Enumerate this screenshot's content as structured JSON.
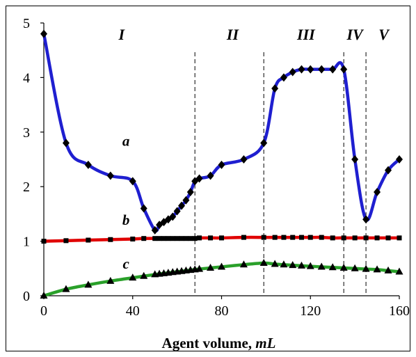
{
  "chart_data": {
    "type": "line",
    "xlabel": "Agent volume,",
    "xlabel_unit": "mL",
    "xlim": [
      0,
      160
    ],
    "ylim": [
      0,
      5
    ],
    "x_ticks": [
      0,
      40,
      80,
      120,
      160
    ],
    "y_ticks": [
      0,
      1,
      2,
      3,
      4,
      5
    ],
    "grid": false,
    "regions": [
      {
        "label": "I",
        "x_center": 35
      },
      {
        "label": "II",
        "x_center": 85
      },
      {
        "label": "III",
        "x_center": 118
      },
      {
        "label": "IV",
        "x_center": 140
      },
      {
        "label": "V",
        "x_center": 153
      }
    ],
    "dividers": [
      68,
      99,
      135,
      145
    ],
    "series": [
      {
        "name": "a",
        "label_at": [
          37,
          2.75
        ],
        "color": "#1f1fd0",
        "marker": "diamond",
        "x": [
          0,
          10,
          20,
          30,
          40,
          45,
          50,
          52,
          54,
          56,
          58,
          60,
          62,
          64,
          66,
          68,
          70,
          75,
          80,
          90,
          99,
          104,
          108,
          112,
          116,
          120,
          125,
          130,
          135,
          140,
          145,
          150,
          155,
          160
        ],
        "y": [
          4.8,
          2.8,
          2.4,
          2.2,
          2.1,
          1.6,
          1.2,
          1.3,
          1.35,
          1.4,
          1.45,
          1.55,
          1.65,
          1.75,
          1.9,
          2.1,
          2.15,
          2.2,
          2.4,
          2.5,
          2.8,
          3.8,
          4.0,
          4.1,
          4.15,
          4.15,
          4.15,
          4.15,
          4.15,
          2.5,
          1.4,
          1.9,
          2.3,
          2.5
        ]
      },
      {
        "name": "b",
        "label_at": [
          37,
          1.3
        ],
        "color": "#e00000",
        "marker": "square",
        "x": [
          0,
          10,
          20,
          30,
          40,
          45,
          50,
          52,
          54,
          56,
          58,
          60,
          62,
          64,
          66,
          68,
          70,
          75,
          80,
          90,
          99,
          104,
          108,
          112,
          116,
          120,
          125,
          130,
          135,
          140,
          145,
          150,
          155,
          160
        ],
        "y": [
          1.0,
          1.01,
          1.02,
          1.03,
          1.04,
          1.05,
          1.05,
          1.05,
          1.05,
          1.05,
          1.05,
          1.05,
          1.05,
          1.05,
          1.05,
          1.05,
          1.06,
          1.06,
          1.06,
          1.07,
          1.07,
          1.07,
          1.07,
          1.07,
          1.07,
          1.07,
          1.07,
          1.06,
          1.06,
          1.06,
          1.06,
          1.06,
          1.06,
          1.06
        ]
      },
      {
        "name": "c",
        "label_at": [
          37,
          0.5
        ],
        "color": "#2aa02a",
        "marker": "triangle",
        "x": [
          0,
          10,
          20,
          30,
          40,
          45,
          50,
          52,
          54,
          56,
          58,
          60,
          62,
          64,
          66,
          68,
          70,
          75,
          80,
          90,
          99,
          104,
          108,
          112,
          116,
          120,
          125,
          130,
          135,
          140,
          145,
          150,
          155,
          160
        ],
        "y": [
          0.0,
          0.12,
          0.2,
          0.27,
          0.33,
          0.36,
          0.39,
          0.4,
          0.41,
          0.42,
          0.43,
          0.44,
          0.45,
          0.46,
          0.47,
          0.48,
          0.49,
          0.51,
          0.53,
          0.57,
          0.6,
          0.58,
          0.57,
          0.56,
          0.55,
          0.54,
          0.53,
          0.52,
          0.51,
          0.5,
          0.49,
          0.48,
          0.46,
          0.44
        ]
      }
    ]
  }
}
